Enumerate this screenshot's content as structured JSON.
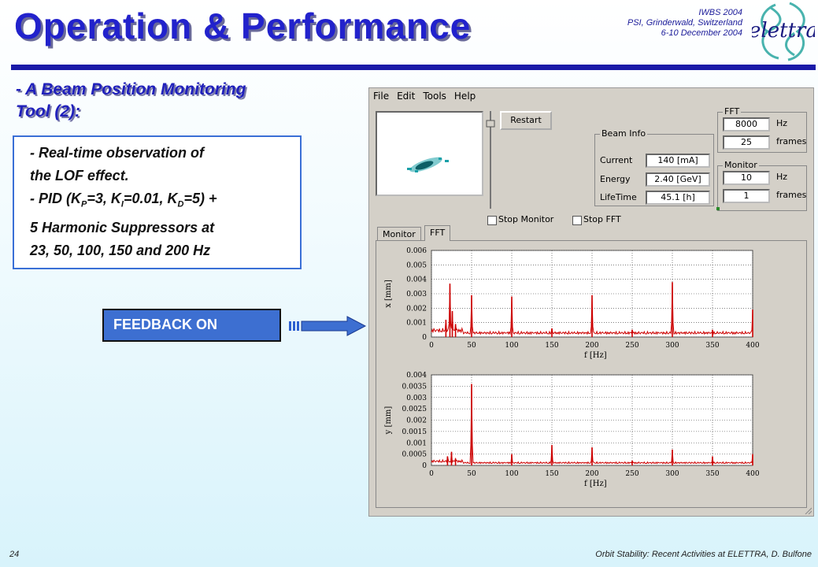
{
  "header": {
    "title": "Operation & Performance",
    "conference": [
      "IWBS 2004",
      "PSI, Grinderwald, Switzerland",
      "6-10 December 2004"
    ],
    "logo_text": "elettra"
  },
  "subtitle": [
    "- A Beam Position Monitoring",
    "Tool (2):"
  ],
  "bullets": [
    "- Real-time observation of",
    "the LOF effect.",
    "5 Harmonic Suppressors at",
    "23, 50, 100, 150 and 200 Hz"
  ],
  "pid_line": {
    "prefix": "- PID (K",
    "p_sub": "P",
    "p_val": "=3, K",
    "i_sub": "I",
    "i_val": "=0.01, K",
    "d_sub": "D",
    "d_val": "=5) +"
  },
  "feedback_label": "FEEDBACK ON",
  "footer": {
    "page": "24",
    "text": "Orbit Stability: Recent Activities at ELETTRA, D. Bulfone"
  },
  "app": {
    "menu": [
      "File",
      "Edit",
      "Tools",
      "Help"
    ],
    "restart_label": "Restart",
    "beam_info": {
      "title": "Beam Info",
      "current_label": "Current",
      "current_value": "140 [mA]",
      "energy_label": "Energy",
      "energy_value": "2.40 [GeV]",
      "lifetime_label": "LifeTime",
      "lifetime_value": "45.1 [h]"
    },
    "fft": {
      "title": "FFT",
      "hz_value": "8000",
      "hz_unit": "Hz",
      "frames_value": "25",
      "frames_unit": "frames"
    },
    "monitor": {
      "title": "Monitor",
      "hz_value": "10",
      "hz_unit": "Hz",
      "frames_value": "1",
      "frames_unit": "frames"
    },
    "stop_monitor_label": "Stop Monitor",
    "stop_fft_label": "Stop FFT",
    "tabs": [
      "Monitor",
      "FFT"
    ],
    "active_tab": "FFT"
  },
  "chart_data": [
    {
      "type": "line",
      "ylabel": "x [mm]",
      "xlabel": "f [Hz]",
      "xlim": [
        0,
        400
      ],
      "ylim": [
        0,
        0.006
      ],
      "x_ticks": [
        "0",
        "50",
        "100",
        "150",
        "200",
        "250",
        "300",
        "350",
        "400"
      ],
      "y_ticks": [
        "0",
        "0.001",
        "0.002",
        "0.003",
        "0.004",
        "0.005",
        "0.006"
      ],
      "series": [
        {
          "color": "#cc0000",
          "baseline": 0.0003,
          "peaks": [
            [
              18,
              0.0012
            ],
            [
              23,
              0.0037
            ],
            [
              26,
              0.0018
            ],
            [
              30,
              0.0009
            ],
            [
              50,
              0.0029
            ],
            [
              100,
              0.0028
            ],
            [
              150,
              0.0006
            ],
            [
              200,
              0.0029
            ],
            [
              250,
              0.0005
            ],
            [
              300,
              0.0038
            ],
            [
              350,
              0.0005
            ],
            [
              400,
              0.0019
            ]
          ]
        }
      ]
    },
    {
      "type": "line",
      "ylabel": "y [mm]",
      "xlabel": "f [Hz]",
      "xlim": [
        0,
        400
      ],
      "ylim": [
        0,
        0.004
      ],
      "x_ticks": [
        "0",
        "50",
        "100",
        "150",
        "200",
        "250",
        "300",
        "350",
        "400"
      ],
      "y_ticks": [
        "0",
        "0.0005",
        "0.001",
        "0.0015",
        "0.002",
        "0.0025",
        "0.003",
        "0.0035",
        "0.004"
      ],
      "series": [
        {
          "color": "#cc0000",
          "baseline": 0.00012,
          "peaks": [
            [
              20,
              0.0004
            ],
            [
              25,
              0.0006
            ],
            [
              30,
              0.0003
            ],
            [
              50,
              0.0036
            ],
            [
              100,
              0.0005
            ],
            [
              150,
              0.0009
            ],
            [
              200,
              0.0008
            ],
            [
              250,
              0.0002
            ],
            [
              300,
              0.0007
            ],
            [
              350,
              0.0004
            ],
            [
              400,
              0.0005
            ]
          ]
        }
      ]
    }
  ]
}
